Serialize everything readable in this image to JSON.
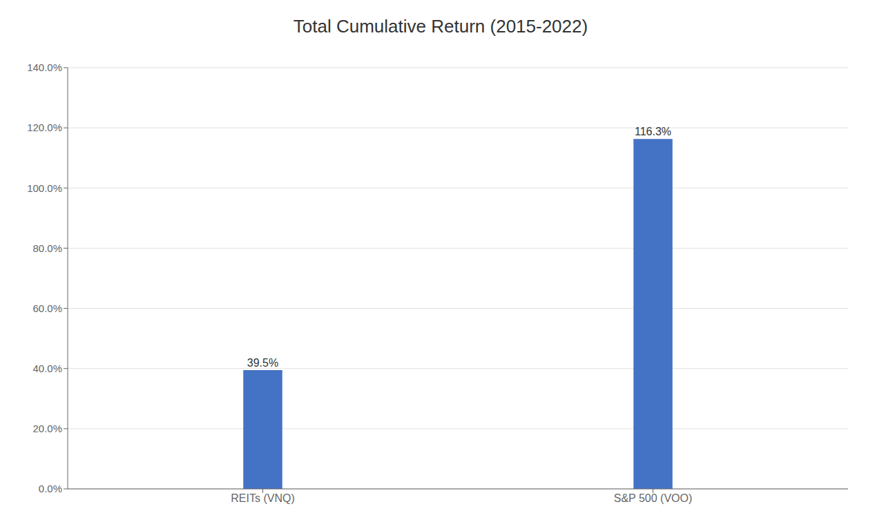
{
  "chart_data": {
    "type": "bar",
    "title": "Total Cumulative Return (2015-2022)",
    "categories": [
      "REITs (VNQ)",
      "S&P 500 (VOO)"
    ],
    "values": [
      0.395,
      1.163
    ],
    "value_labels": [
      "39.5%",
      "116.3%"
    ],
    "data_labels": true,
    "color": "#4472C4",
    "ylim": [
      0,
      1.4
    ],
    "yticks": [
      {
        "value": 0.0,
        "label": "0.0%"
      },
      {
        "value": 0.2,
        "label": "20.0%"
      },
      {
        "value": 0.4,
        "label": "40.0%"
      },
      {
        "value": 0.6,
        "label": "60.0%"
      },
      {
        "value": 0.8,
        "label": "80.0%"
      },
      {
        "value": 1.0,
        "label": "100.0%"
      },
      {
        "value": 1.2,
        "label": "120.0%"
      },
      {
        "value": 1.4,
        "label": "140.0%"
      }
    ],
    "grid": true
  }
}
